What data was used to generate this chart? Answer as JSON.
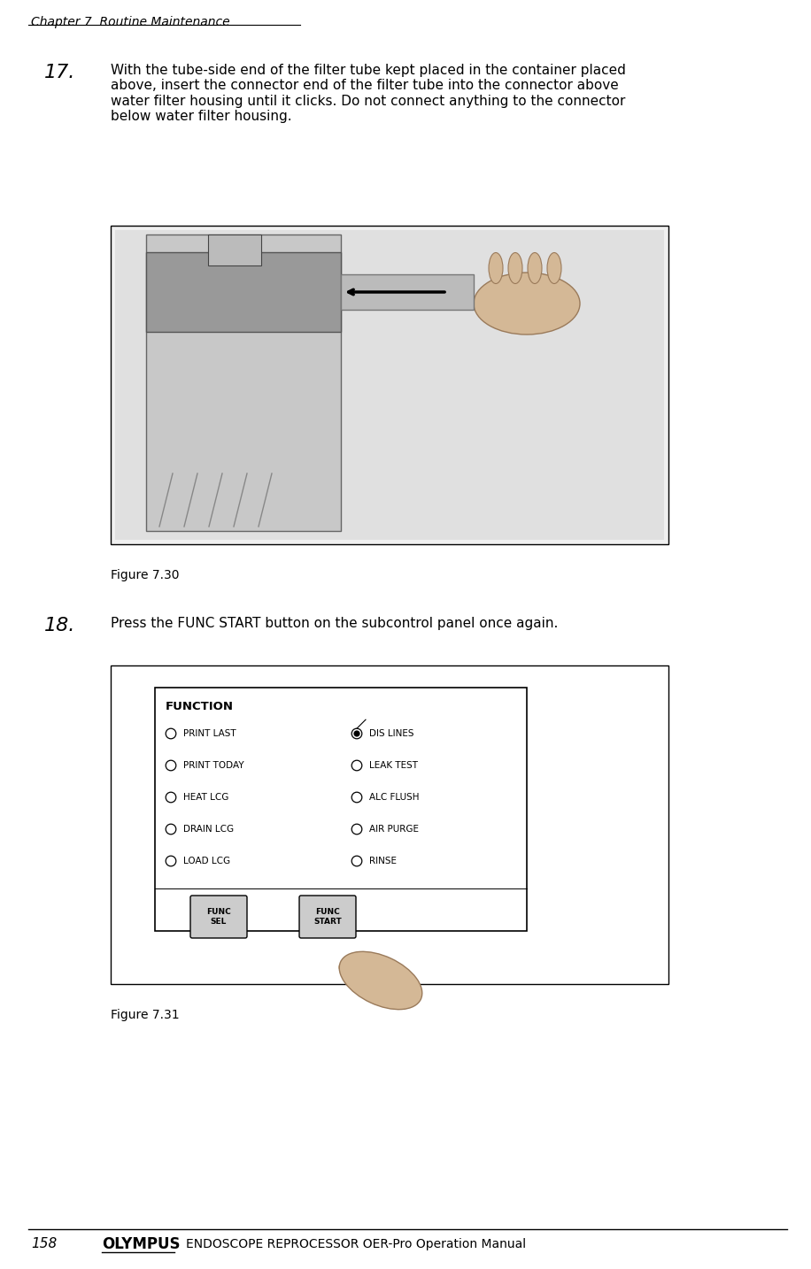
{
  "page_width": 9.16,
  "page_height": 14.34,
  "bg_color": "#ffffff",
  "header_text": "Chapter 7  Routine Maintenance",
  "header_font_size": 10,
  "footer_page_num": "158",
  "footer_brand": "OLYMPUS",
  "footer_manual": "ENDOSCOPE REPROCESSOR OER-Pro Operation Manual",
  "step17_number": "17.",
  "step17_text": "With the tube-side end of the filter tube kept placed in the container placed\nabove, insert the connector end of the filter tube into the connector above\nwater filter housing until it clicks. Do not connect anything to the connector\nbelow water filter housing.",
  "step18_number": "18.",
  "step18_text": "Press the FUNC START button on the subcontrol panel once again.",
  "fig30_caption": "Figure 7.30",
  "fig31_caption": "Figure 7.31",
  "text_color": "#000000",
  "border_color": "#000000",
  "step_num_fontsize": 16,
  "step_text_fontsize": 11,
  "caption_fontsize": 10,
  "function_panel": {
    "title": "FUNCTION",
    "left_items": [
      "PRINT LAST",
      "PRINT TODAY",
      "HEAT LCG",
      "DRAIN LCG",
      "LOAD LCG"
    ],
    "right_items": [
      "DIS LINES",
      "LEAK TEST",
      "ALC FLUSH",
      "AIR PURGE",
      "RINSE"
    ],
    "btn1": "FUNC\nSEL",
    "btn2": "FUNC\nSTART"
  }
}
